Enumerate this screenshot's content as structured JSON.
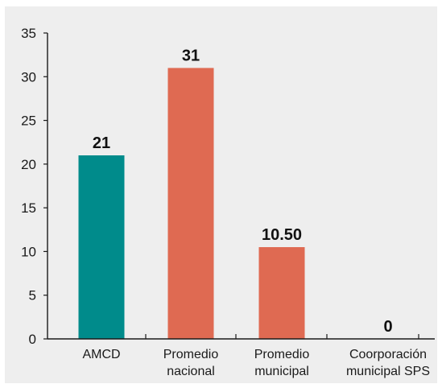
{
  "colors": {
    "panel_background": "#eeeeee",
    "axis": "#1a1a1a",
    "teal": "#008b8b",
    "coral": "#df6a52"
  },
  "chart_data": {
    "type": "bar",
    "title": "",
    "xlabel": "",
    "ylabel": "",
    "ylim": [
      0,
      35
    ],
    "yticks": [
      0,
      5,
      10,
      15,
      20,
      25,
      30,
      35
    ],
    "grid": false,
    "legend": "none",
    "categories": [
      [
        "AMCD"
      ],
      [
        "Promedio",
        "nacional"
      ],
      [
        "Promedio",
        "municipal"
      ],
      [
        "Coorporación",
        "municipal SPS"
      ]
    ],
    "values": [
      21,
      31,
      10.5,
      0
    ],
    "value_labels": [
      "21",
      "31",
      "10.50",
      "0"
    ],
    "bar_colors": [
      "#008b8b",
      "#df6a52",
      "#df6a52",
      "#df6a52"
    ]
  }
}
